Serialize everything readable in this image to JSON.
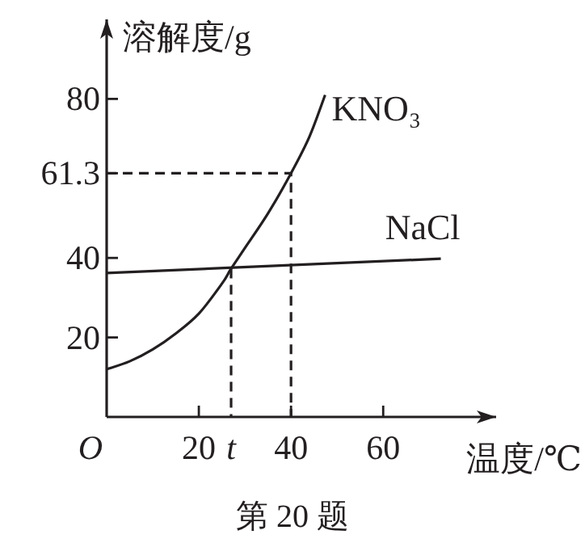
{
  "chart_data": {
    "type": "line",
    "ylabel": "溶解度/g",
    "xlabel": "温度/℃",
    "annotations": [
      "第 20 题"
    ],
    "xlim": [
      0,
      84.5
    ],
    "ylim": [
      0,
      100
    ],
    "xticks": [
      {
        "value": 0,
        "label": "O"
      },
      20,
      {
        "value": 27,
        "label": "t"
      },
      40,
      60
    ],
    "yticks": [
      20,
      40,
      61.3,
      80
    ],
    "grid": false,
    "marker": "none",
    "series": [
      {
        "name": "KNO₃",
        "color": "#231f20",
        "line_style": "solid",
        "x": [
          0,
          5,
          10,
          15,
          20,
          25,
          27,
          30,
          35,
          40,
          44,
          47.4
        ],
        "values": [
          12,
          14,
          17,
          21,
          26,
          33.5,
          37.3,
          42.5,
          51.2,
          61.3,
          70.5,
          81
        ]
      },
      {
        "name": "NaCl",
        "color": "#231f20",
        "line_style": "solid",
        "x": [
          0,
          72.5
        ],
        "values": [
          36.2,
          39.8
        ]
      },
      {
        "color": "#231f20",
        "line_style": "dashed",
        "x": [
          0,
          40,
          40
        ],
        "values": [
          61.3,
          61.3,
          0
        ]
      },
      {
        "color": "#231f20",
        "line_style": "dashed",
        "x": [
          27,
          27
        ],
        "values": [
          37.3,
          0
        ]
      }
    ]
  }
}
